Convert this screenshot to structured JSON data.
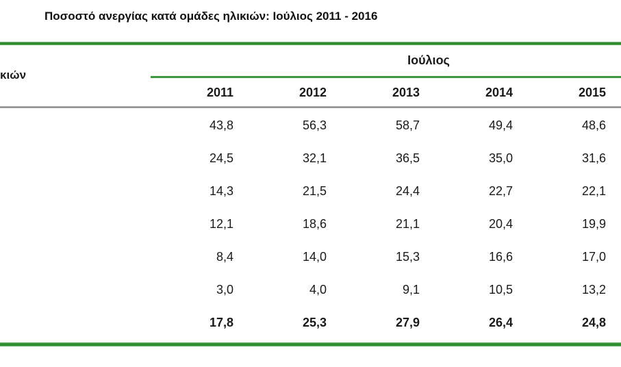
{
  "title": "Ποσοστό ανεργίας κατά ομάδες ηλικιών: Ιούλιος 2011 - 2016",
  "table": {
    "left_header_fragment": "κιών",
    "group_header": "Ιούλιος",
    "years": [
      "2011",
      "2012",
      "2013",
      "2014",
      "2015"
    ],
    "rows": [
      {
        "values": [
          "43,8",
          "56,3",
          "58,7",
          "49,4",
          "48,6"
        ]
      },
      {
        "values": [
          "24,5",
          "32,1",
          "36,5",
          "35,0",
          "31,6"
        ]
      },
      {
        "values": [
          "14,3",
          "21,5",
          "24,4",
          "22,7",
          "22,1"
        ]
      },
      {
        "values": [
          "12,1",
          "18,6",
          "21,1",
          "20,4",
          "19,9"
        ]
      },
      {
        "values": [
          "8,4",
          "14,0",
          "15,3",
          "16,6",
          "17,0"
        ]
      },
      {
        "values": [
          "3,0",
          "4,0",
          "9,1",
          "10,5",
          "13,2"
        ]
      },
      {
        "values": [
          "17,8",
          "25,3",
          "27,9",
          "26,4",
          "24,8"
        ]
      }
    ],
    "colors": {
      "green_rule": "#2e8b2e",
      "gray_rule": "#898989",
      "text": "#1a1a1a"
    }
  },
  "chart_data": {
    "type": "table",
    "title": "Ποσοστό ανεργίας κατά ομάδες ηλικιών: Ιούλιος 2011 - 2016",
    "group_header": "Ιούλιος",
    "columns": [
      2011,
      2012,
      2013,
      2014,
      2015
    ],
    "rows": [
      [
        43.8,
        56.3,
        58.7,
        49.4,
        48.6
      ],
      [
        24.5,
        32.1,
        36.5,
        35.0,
        31.6
      ],
      [
        14.3,
        21.5,
        24.4,
        22.7,
        22.1
      ],
      [
        12.1,
        18.6,
        21.1,
        20.4,
        19.9
      ],
      [
        8.4,
        14.0,
        15.3,
        16.6,
        17.0
      ],
      [
        3.0,
        4.0,
        9.1,
        10.5,
        13.2
      ],
      [
        17.8,
        25.3,
        27.9,
        26.4,
        24.8
      ]
    ],
    "notes": "Row labels (age groups) and the 2016 column are cropped outside the visible screenshot; last row is bold (total)."
  }
}
